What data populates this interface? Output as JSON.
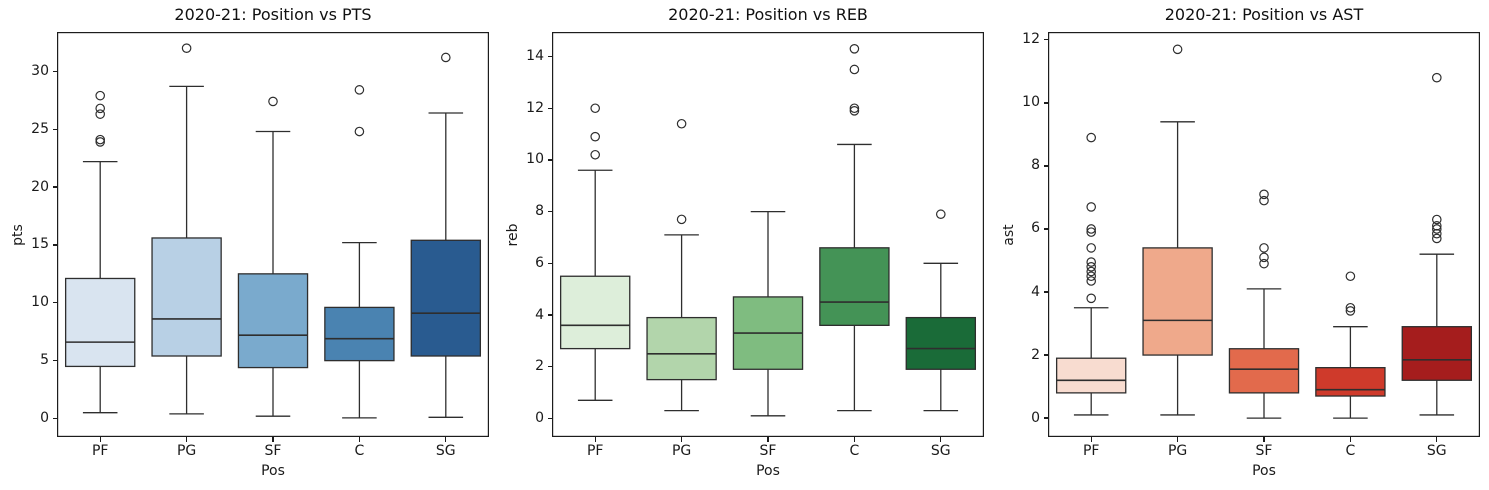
{
  "chart_data": [
    {
      "type": "box",
      "title": "2020-21: Position vs PTS",
      "xlabel": "Pos",
      "ylabel": "pts",
      "categories": [
        "PF",
        "PG",
        "SF",
        "C",
        "SG"
      ],
      "ylim": [
        -1.6,
        33.4
      ],
      "yticks": [
        0,
        5,
        10,
        15,
        20,
        25,
        30
      ],
      "grid": false,
      "legend": "none",
      "boxes": [
        {
          "category": "PF",
          "color": "#d9e4f0",
          "whislo": 0.5,
          "q1": 4.5,
          "med": 6.6,
          "q3": 12.1,
          "whishi": 22.2,
          "fliers": [
            23.9,
            24.1,
            26.3,
            26.8,
            27.9
          ]
        },
        {
          "category": "PG",
          "color": "#b8d0e5",
          "whislo": 0.4,
          "q1": 5.4,
          "med": 8.6,
          "q3": 15.6,
          "whishi": 28.7,
          "fliers": [
            32.0
          ]
        },
        {
          "category": "SF",
          "color": "#7aaacd",
          "whislo": 0.2,
          "q1": 4.4,
          "med": 7.2,
          "q3": 12.5,
          "whishi": 24.8,
          "fliers": [
            27.4
          ]
        },
        {
          "category": "C",
          "color": "#4a83b1",
          "whislo": 0.05,
          "q1": 5.0,
          "med": 6.9,
          "q3": 9.6,
          "whishi": 15.2,
          "fliers": [
            24.8,
            28.4
          ]
        },
        {
          "category": "SG",
          "color": "#295b90",
          "whislo": 0.1,
          "q1": 5.4,
          "med": 9.1,
          "q3": 15.4,
          "whishi": 26.4,
          "fliers": [
            31.2
          ]
        }
      ]
    },
    {
      "type": "box",
      "title": "2020-21: Position vs REB",
      "xlabel": "Pos",
      "ylabel": "reb",
      "categories": [
        "PF",
        "PG",
        "SF",
        "C",
        "SG"
      ],
      "ylim": [
        -0.72,
        14.95
      ],
      "yticks": [
        0,
        2,
        4,
        6,
        8,
        10,
        12,
        14
      ],
      "grid": false,
      "legend": "none",
      "boxes": [
        {
          "category": "PF",
          "color": "#ddeeda",
          "whislo": 0.7,
          "q1": 2.7,
          "med": 3.6,
          "q3": 5.5,
          "whishi": 9.6,
          "fliers": [
            10.2,
            10.9,
            12.0
          ]
        },
        {
          "category": "PG",
          "color": "#b2d5ab",
          "whislo": 0.3,
          "q1": 1.5,
          "med": 2.5,
          "q3": 3.9,
          "whishi": 7.1,
          "fliers": [
            7.7,
            11.4
          ]
        },
        {
          "category": "SF",
          "color": "#7fbc80",
          "whislo": 0.1,
          "q1": 1.9,
          "med": 3.3,
          "q3": 4.7,
          "whishi": 8.0,
          "fliers": []
        },
        {
          "category": "C",
          "color": "#449356",
          "whislo": 0.3,
          "q1": 3.6,
          "med": 4.5,
          "q3": 6.6,
          "whishi": 10.6,
          "fliers": [
            11.9,
            12.0,
            13.5,
            14.3
          ]
        },
        {
          "category": "SG",
          "color": "#1a6b38",
          "whislo": 0.3,
          "q1": 1.9,
          "med": 2.7,
          "q3": 3.9,
          "whishi": 6.0,
          "fliers": [
            7.9
          ]
        }
      ]
    },
    {
      "type": "box",
      "title": "2020-21: Position vs AST",
      "xlabel": "Pos",
      "ylabel": "ast",
      "categories": [
        "PF",
        "PG",
        "SF",
        "C",
        "SG"
      ],
      "ylim": [
        -0.6,
        12.25
      ],
      "yticks": [
        0,
        2,
        4,
        6,
        8,
        10,
        12
      ],
      "grid": false,
      "legend": "none",
      "boxes": [
        {
          "category": "PF",
          "color": "#f8dcd0",
          "whislo": 0.1,
          "q1": 0.8,
          "med": 1.2,
          "q3": 1.9,
          "whishi": 3.5,
          "fliers": [
            3.8,
            4.35,
            4.5,
            4.65,
            4.8,
            4.95,
            5.4,
            5.9,
            6.0,
            6.7,
            8.9
          ]
        },
        {
          "category": "PG",
          "color": "#efa98b",
          "whislo": 0.1,
          "q1": 2.0,
          "med": 3.1,
          "q3": 5.4,
          "whishi": 9.4,
          "fliers": [
            11.7
          ]
        },
        {
          "category": "SF",
          "color": "#e26a4c",
          "whislo": 0.0,
          "q1": 0.8,
          "med": 1.55,
          "q3": 2.2,
          "whishi": 4.1,
          "fliers": [
            4.9,
            5.1,
            5.4,
            6.9,
            7.1
          ]
        },
        {
          "category": "C",
          "color": "#cf3a2b",
          "whislo": 0.0,
          "q1": 0.7,
          "med": 0.9,
          "q3": 1.6,
          "whishi": 2.9,
          "fliers": [
            3.4,
            3.5,
            4.5
          ]
        },
        {
          "category": "SG",
          "color": "#a51d1d",
          "whislo": 0.1,
          "q1": 1.2,
          "med": 1.85,
          "q3": 2.9,
          "whishi": 5.2,
          "fliers": [
            5.7,
            5.85,
            6.0,
            6.1,
            6.3,
            10.8
          ]
        }
      ]
    }
  ]
}
